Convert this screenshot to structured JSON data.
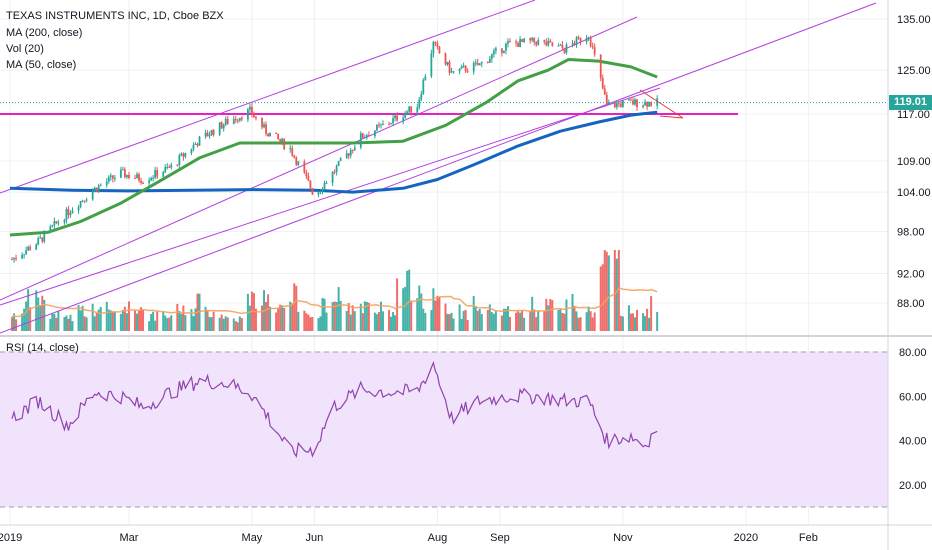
{
  "legend": {
    "title": "TEXAS INSTRUMENTS INC, 1D, Cboe BZX",
    "ma200": "MA (200, close)",
    "vol": "Vol (20)",
    "ma50": "MA (50, close)",
    "rsi": "RSI (14, close)"
  },
  "last_price_label": "119.01",
  "colors": {
    "up": "#26a69a",
    "down": "#ef5350",
    "ma200": "#1565c0",
    "ma50": "#43a047",
    "channel": "#b23fe0",
    "support": "#e91ec3",
    "rsi": "#8e44ad",
    "rsi_band": "#f1e3fb",
    "vol_ma": "#f4a261",
    "trend_break": "#e53935"
  },
  "chart_data": [
    {
      "type": "candlestick",
      "x_axis": {
        "ticks": [
          "2019",
          "Mar",
          "May",
          "Jun",
          "Aug",
          "Sep",
          "Nov",
          "2020",
          "Feb"
        ]
      },
      "y_axis": {
        "ticks": [
          88.0,
          92.0,
          98.0,
          104.0,
          109.0,
          117.0,
          125.0,
          135.0
        ],
        "scale": "log"
      },
      "last_price": 119.01,
      "support_level": 117.0,
      "series": [
        {
          "name": "MA (200, close)",
          "kind": "line",
          "points": [
            [
              "2019-01-01",
              104.6
            ],
            [
              "2019-02-01",
              104.3
            ],
            [
              "2019-03-01",
              104.2
            ],
            [
              "2019-04-01",
              104.3
            ],
            [
              "2019-05-01",
              104.4
            ],
            [
              "2019-06-01",
              104.3
            ],
            [
              "2019-06-20",
              104.0
            ],
            [
              "2019-07-15",
              104.6
            ],
            [
              "2019-08-01",
              106.0
            ],
            [
              "2019-08-20",
              108.5
            ],
            [
              "2019-09-10",
              111.5
            ],
            [
              "2019-10-01",
              114.0
            ],
            [
              "2019-10-20",
              115.6
            ],
            [
              "2019-11-05",
              116.8
            ],
            [
              "2019-11-18",
              117.3
            ]
          ]
        },
        {
          "name": "MA (50, close)",
          "kind": "line",
          "points": [
            [
              "2019-01-01",
              97.5
            ],
            [
              "2019-01-20",
              97.9
            ],
            [
              "2019-02-05",
              99.5
            ],
            [
              "2019-02-25",
              102.3
            ],
            [
              "2019-03-15",
              105.5
            ],
            [
              "2019-04-05",
              109.5
            ],
            [
              "2019-04-25",
              112.0
            ],
            [
              "2019-05-15",
              112.0
            ],
            [
              "2019-06-01",
              112.0
            ],
            [
              "2019-06-20",
              112.0
            ],
            [
              "2019-07-15",
              112.3
            ],
            [
              "2019-08-05",
              115.0
            ],
            [
              "2019-08-25",
              119.0
            ],
            [
              "2019-09-10",
              123.0
            ],
            [
              "2019-09-25",
              125.0
            ],
            [
              "2019-10-05",
              127.0
            ],
            [
              "2019-10-20",
              126.7
            ],
            [
              "2019-11-05",
              125.6
            ],
            [
              "2019-11-18",
              123.7
            ]
          ]
        },
        {
          "name": "Close",
          "kind": "candles",
          "points": [
            [
              "2019-01-02",
              94.0
            ],
            [
              "2019-01-15",
              96.5
            ],
            [
              "2019-01-30",
              101.0
            ],
            [
              "2019-02-12",
              104.5
            ],
            [
              "2019-02-25",
              107.0
            ],
            [
              "2019-03-08",
              106.0
            ],
            [
              "2019-03-22",
              108.0
            ],
            [
              "2019-04-05",
              112.5
            ],
            [
              "2019-04-18",
              115.5
            ],
            [
              "2019-04-30",
              117.5
            ],
            [
              "2019-05-08",
              114.0
            ],
            [
              "2019-05-20",
              111.0
            ],
            [
              "2019-06-01",
              103.5
            ],
            [
              "2019-06-10",
              107.0
            ],
            [
              "2019-06-24",
              113.0
            ],
            [
              "2019-07-08",
              115.5
            ],
            [
              "2019-07-22",
              118.5
            ],
            [
              "2019-07-30",
              130.0
            ],
            [
              "2019-08-08",
              124.5
            ],
            [
              "2019-08-22",
              126.0
            ],
            [
              "2019-09-05",
              130.0
            ],
            [
              "2019-09-19",
              130.5
            ],
            [
              "2019-10-03",
              129.0
            ],
            [
              "2019-10-15",
              132.0
            ],
            [
              "2019-10-24",
              118.5
            ],
            [
              "2019-11-05",
              119.0
            ],
            [
              "2019-11-18",
              119.0
            ]
          ]
        }
      ],
      "volume": [
        4.0,
        7.5,
        3.5,
        5.0,
        4.5,
        5.5,
        3.5,
        5.0,
        4.5,
        3.0,
        7.5,
        5.5,
        4.0,
        6.0,
        5.5,
        4.0,
        11.0,
        6.5,
        4.0,
        5.0,
        4.5,
        4.0,
        6.0,
        4.5,
        16.5,
        5.0,
        4.0
      ]
    },
    {
      "type": "line",
      "name": "RSI (14, close)",
      "y_axis": {
        "ticks": [
          20.0,
          40.0,
          60.0,
          80.0
        ],
        "upper_band": 80,
        "lower_band": 10
      },
      "points": [
        [
          "2019-01-02",
          50
        ],
        [
          "2019-01-15",
          58
        ],
        [
          "2019-01-30",
          47
        ],
        [
          "2019-02-12",
          62
        ],
        [
          "2019-02-25",
          60
        ],
        [
          "2019-03-08",
          55
        ],
        [
          "2019-03-22",
          62
        ],
        [
          "2019-04-05",
          67
        ],
        [
          "2019-04-18",
          66
        ],
        [
          "2019-04-30",
          62
        ],
        [
          "2019-05-08",
          52
        ],
        [
          "2019-05-20",
          35
        ],
        [
          "2019-06-01",
          36
        ],
        [
          "2019-06-10",
          55
        ],
        [
          "2019-06-24",
          63
        ],
        [
          "2019-07-08",
          62
        ],
        [
          "2019-07-22",
          62
        ],
        [
          "2019-07-30",
          75
        ],
        [
          "2019-08-08",
          50
        ],
        [
          "2019-08-22",
          58
        ],
        [
          "2019-09-05",
          60
        ],
        [
          "2019-09-19",
          60
        ],
        [
          "2019-10-03",
          58
        ],
        [
          "2019-10-15",
          58
        ],
        [
          "2019-10-24",
          40
        ],
        [
          "2019-11-05",
          42
        ],
        [
          "2019-11-12",
          38
        ],
        [
          "2019-11-18",
          46
        ]
      ]
    }
  ]
}
